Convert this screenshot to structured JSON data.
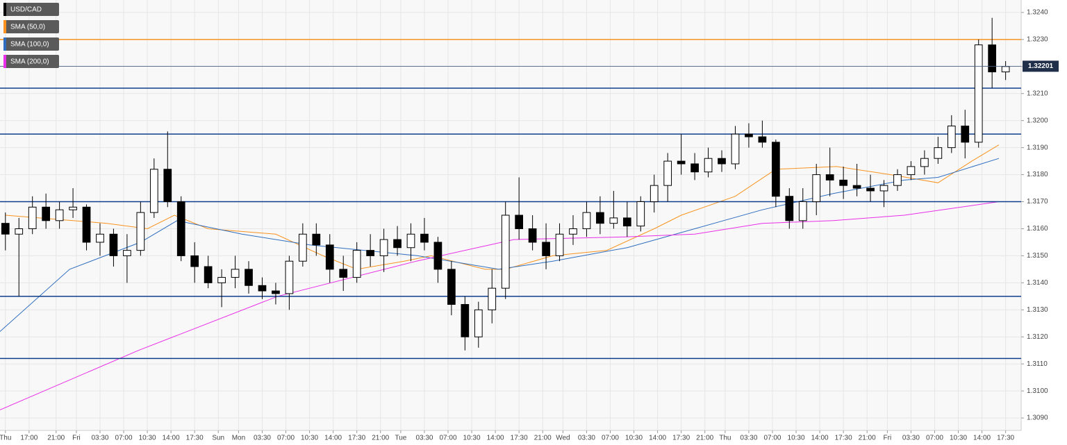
{
  "chart_data": {
    "type": "candlestick",
    "name": "USD/CAD",
    "up_color": "#ffffff",
    "down_color": "#000000",
    "x": [
      0,
      2,
      4,
      6,
      8,
      10,
      12,
      14,
      16,
      18,
      20,
      22,
      24,
      26,
      28,
      30,
      32,
      34,
      36,
      38,
      40,
      42,
      44,
      46,
      48,
      50,
      52,
      54,
      56,
      58,
      60,
      62,
      64,
      66,
      68,
      70,
      72,
      74,
      76,
      78,
      80,
      82,
      84,
      86,
      88,
      90,
      92,
      94,
      96,
      98,
      100,
      102,
      104,
      106,
      108,
      110,
      112,
      114,
      116,
      118,
      120,
      122,
      124,
      126,
      128,
      130,
      132,
      134,
      136,
      138,
      140,
      142,
      144,
      146,
      148
    ],
    "open": [
      1.3162,
      1.3158,
      1.316,
      1.3168,
      1.3163,
      1.3167,
      1.3168,
      1.3155,
      1.3158,
      1.315,
      1.3152,
      1.3166,
      1.3182,
      1.317,
      1.315,
      1.3146,
      1.314,
      1.3142,
      1.3145,
      1.3139,
      1.3137,
      1.3136,
      1.3148,
      1.3158,
      1.3154,
      1.3145,
      1.3142,
      1.3152,
      1.315,
      1.3156,
      1.3153,
      1.3158,
      1.3155,
      1.3145,
      1.3132,
      1.312,
      1.313,
      1.3138,
      1.3165,
      1.316,
      1.3155,
      1.315,
      1.3158,
      1.316,
      1.3166,
      1.3162,
      1.3164,
      1.3161,
      1.317,
      1.3176,
      1.3185,
      1.3184,
      1.3181,
      1.3186,
      1.3184,
      1.3195,
      1.3194,
      1.3192,
      1.3172,
      1.3163,
      1.317,
      1.318,
      1.3178,
      1.3176,
      1.3175,
      1.3174,
      1.3176,
      1.318,
      1.3183,
      1.3186,
      1.319,
      1.3198,
      1.3192,
      1.3228,
      1.3218
    ],
    "high": [
      1.3166,
      1.3164,
      1.3172,
      1.3173,
      1.317,
      1.3175,
      1.3169,
      1.3162,
      1.316,
      1.3158,
      1.317,
      1.3186,
      1.3196,
      1.3172,
      1.3155,
      1.315,
      1.3145,
      1.315,
      1.3148,
      1.3142,
      1.314,
      1.315,
      1.3162,
      1.3162,
      1.3158,
      1.315,
      1.3155,
      1.3158,
      1.316,
      1.3161,
      1.3162,
      1.3164,
      1.3157,
      1.3148,
      1.3135,
      1.3133,
      1.3145,
      1.317,
      1.3179,
      1.3165,
      1.3162,
      1.3162,
      1.3165,
      1.317,
      1.3172,
      1.3174,
      1.317,
      1.3172,
      1.318,
      1.3188,
      1.3195,
      1.3188,
      1.319,
      1.3189,
      1.3198,
      1.3199,
      1.32,
      1.3193,
      1.3175,
      1.3175,
      1.3184,
      1.319,
      1.3183,
      1.3184,
      1.318,
      1.3178,
      1.3182,
      1.3185,
      1.3189,
      1.3194,
      1.3202,
      1.3204,
      1.323,
      1.3238,
      1.3222
    ],
    "low": [
      1.3152,
      1.3135,
      1.3158,
      1.316,
      1.316,
      1.3164,
      1.3152,
      1.315,
      1.3146,
      1.314,
      1.315,
      1.3164,
      1.3168,
      1.3148,
      1.314,
      1.3138,
      1.3131,
      1.3138,
      1.3136,
      1.3134,
      1.3132,
      1.313,
      1.3146,
      1.315,
      1.314,
      1.3137,
      1.314,
      1.3146,
      1.3144,
      1.315,
      1.3148,
      1.3152,
      1.314,
      1.3128,
      1.3115,
      1.3116,
      1.3125,
      1.3134,
      1.3156,
      1.3152,
      1.3145,
      1.3148,
      1.3154,
      1.3157,
      1.3158,
      1.316,
      1.3157,
      1.3159,
      1.3166,
      1.317,
      1.318,
      1.3178,
      1.3179,
      1.3181,
      1.3182,
      1.319,
      1.319,
      1.3168,
      1.316,
      1.316,
      1.3165,
      1.3172,
      1.3171,
      1.3172,
      1.317,
      1.3168,
      1.3174,
      1.3178,
      1.318,
      1.3184,
      1.3188,
      1.3186,
      1.319,
      1.3212,
      1.3215
    ],
    "close": [
      1.3158,
      1.316,
      1.3168,
      1.3163,
      1.3167,
      1.3168,
      1.3155,
      1.3158,
      1.315,
      1.3152,
      1.3166,
      1.3182,
      1.317,
      1.315,
      1.3146,
      1.314,
      1.3142,
      1.3145,
      1.3139,
      1.3137,
      1.3136,
      1.3148,
      1.3158,
      1.3154,
      1.3145,
      1.3142,
      1.3152,
      1.315,
      1.3156,
      1.3153,
      1.3158,
      1.3155,
      1.3145,
      1.3132,
      1.312,
      1.313,
      1.3138,
      1.3165,
      1.316,
      1.3155,
      1.315,
      1.3158,
      1.316,
      1.3166,
      1.3162,
      1.3164,
      1.3161,
      1.317,
      1.3176,
      1.3185,
      1.3184,
      1.3181,
      1.3186,
      1.3184,
      1.3195,
      1.3194,
      1.3192,
      1.3172,
      1.3163,
      1.317,
      1.318,
      1.3178,
      1.3176,
      1.3175,
      1.3174,
      1.3176,
      1.318,
      1.3183,
      1.3186,
      1.319,
      1.3198,
      1.3192,
      1.3228,
      1.3218,
      1.322
    ],
    "series": [
      {
        "name": "SMA (50,0)",
        "color": "#f7931e",
        "x": [
          0,
          15,
          21,
          25,
          30,
          40,
          47,
          52,
          59,
          63,
          71,
          74,
          81,
          89,
          96,
          100,
          108,
          114,
          123,
          131,
          138,
          143,
          147
        ],
        "values": [
          1.3165,
          1.3162,
          1.316,
          1.3165,
          1.316,
          1.3158,
          1.315,
          1.3145,
          1.3148,
          1.315,
          1.3145,
          1.3145,
          1.315,
          1.3152,
          1.316,
          1.3165,
          1.3172,
          1.3182,
          1.3183,
          1.318,
          1.3177,
          1.3185,
          1.3191
        ]
      },
      {
        "name": "SMA (100,0)",
        "color": "#2f6ebf",
        "x": [
          -0.8,
          9.5,
          20,
          25.4,
          35,
          45,
          61,
          73,
          81,
          92,
          102,
          112,
          122.5,
          133,
          138,
          147
        ],
        "values": [
          1.3122,
          1.3145,
          1.3155,
          1.3163,
          1.3158,
          1.3154,
          1.315,
          1.3145,
          1.3148,
          1.3153,
          1.316,
          1.3167,
          1.3173,
          1.3178,
          1.3179,
          1.3186
        ]
      },
      {
        "name": "SMA (200,0)",
        "color": "#e82ee8",
        "x": [
          -0.8,
          19.7,
          40.3,
          60.8,
          75.2,
          91.7,
          102,
          112,
          122.5,
          133,
          147
        ],
        "values": [
          1.3093,
          1.3115,
          1.3135,
          1.3148,
          1.3156,
          1.3157,
          1.3158,
          1.3162,
          1.3163,
          1.3165,
          1.317
        ]
      }
    ],
    "hlines": [
      {
        "value": 1.323,
        "color": "#f7931e"
      },
      {
        "value": 1.3212,
        "color": "#0d3d8c"
      },
      {
        "value": 1.3195,
        "color": "#0d3d8c"
      },
      {
        "value": 1.317,
        "color": "#0d3d8c"
      },
      {
        "value": 1.3135,
        "color": "#0d3d8c"
      },
      {
        "value": 1.3112,
        "color": "#0d3d8c"
      }
    ],
    "last_price": 1.32201,
    "xlim": [
      -0.8,
      150.3
    ],
    "xticks": [
      {
        "value": 0,
        "label": "Thu"
      },
      {
        "value": 3.5,
        "label": "17:00"
      },
      {
        "value": 7.5,
        "label": "21:00"
      },
      {
        "value": 10.5,
        "label": "Fri"
      },
      {
        "value": 14,
        "label": "03:30"
      },
      {
        "value": 17.5,
        "label": "07:00"
      },
      {
        "value": 21,
        "label": "10:30"
      },
      {
        "value": 24.5,
        "label": "14:00"
      },
      {
        "value": 28,
        "label": "17:30"
      },
      {
        "value": 31.5,
        "label": "Sun"
      },
      {
        "value": 34.5,
        "label": "Mon"
      },
      {
        "value": 38,
        "label": "03:30"
      },
      {
        "value": 41.5,
        "label": "07:00"
      },
      {
        "value": 45,
        "label": "10:30"
      },
      {
        "value": 48.5,
        "label": "14:00"
      },
      {
        "value": 52,
        "label": "17:30"
      },
      {
        "value": 55.5,
        "label": "21:00"
      },
      {
        "value": 58.5,
        "label": "Tue"
      },
      {
        "value": 62,
        "label": "03:30"
      },
      {
        "value": 65.5,
        "label": "07:00"
      },
      {
        "value": 69,
        "label": "10:30"
      },
      {
        "value": 72.5,
        "label": "14:00"
      },
      {
        "value": 76,
        "label": "17:30"
      },
      {
        "value": 79.5,
        "label": "21:00"
      },
      {
        "value": 82.5,
        "label": "Wed"
      },
      {
        "value": 86,
        "label": "03:30"
      },
      {
        "value": 89.5,
        "label": "07:00"
      },
      {
        "value": 93,
        "label": "10:30"
      },
      {
        "value": 96.5,
        "label": "14:00"
      },
      {
        "value": 100,
        "label": "17:30"
      },
      {
        "value": 103.5,
        "label": "21:00"
      },
      {
        "value": 106.5,
        "label": "Thu"
      },
      {
        "value": 110,
        "label": "03:30"
      },
      {
        "value": 113.5,
        "label": "07:00"
      },
      {
        "value": 117,
        "label": "10:30"
      },
      {
        "value": 120.5,
        "label": "14:00"
      },
      {
        "value": 124,
        "label": "17:30"
      },
      {
        "value": 127.5,
        "label": "21:00"
      },
      {
        "value": 130.5,
        "label": "Fri"
      },
      {
        "value": 134,
        "label": "03:30"
      },
      {
        "value": 137.5,
        "label": "07:00"
      },
      {
        "value": 141,
        "label": "10:30"
      },
      {
        "value": 144.5,
        "label": "14:00"
      },
      {
        "value": 148,
        "label": "17:30"
      }
    ],
    "ylim": [
      1.30854,
      1.32446
    ],
    "yticks": [
      {
        "value": 1.309,
        "label": "1.3090"
      },
      {
        "value": 1.31,
        "label": "1.3100"
      },
      {
        "value": 1.311,
        "label": "1.3110"
      },
      {
        "value": 1.312,
        "label": "1.3120"
      },
      {
        "value": 1.313,
        "label": "1.3130"
      },
      {
        "value": 1.314,
        "label": "1.3140"
      },
      {
        "value": 1.315,
        "label": "1.3150"
      },
      {
        "value": 1.316,
        "label": "1.3160"
      },
      {
        "value": 1.317,
        "label": "1.3170"
      },
      {
        "value": 1.318,
        "label": "1.3180"
      },
      {
        "value": 1.319,
        "label": "1.3190"
      },
      {
        "value": 1.32,
        "label": "1.3200"
      },
      {
        "value": 1.321,
        "label": "1.3210"
      },
      {
        "value": 1.322,
        "label": "1.3220"
      },
      {
        "value": 1.323,
        "label": "1.3230"
      },
      {
        "value": 1.324,
        "label": "1.3240"
      }
    ],
    "grid": true
  }
}
